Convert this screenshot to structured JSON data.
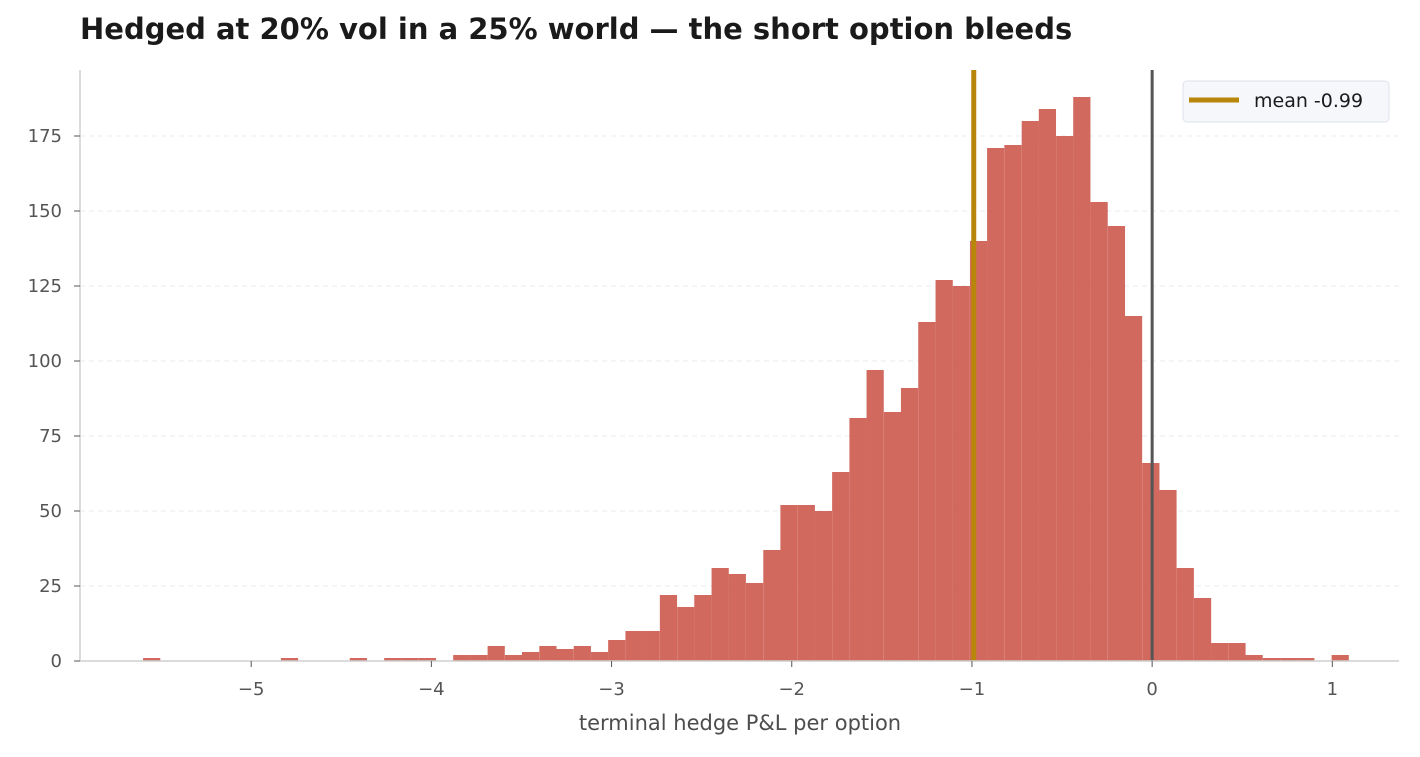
{
  "chart_data": {
    "type": "bar",
    "title": "Hedged at 20% vol in a 25% world — the short option bleeds",
    "xlabel": "terminal hedge P&L per option",
    "ylabel": "",
    "xlim": [
      -5.95,
      1.37
    ],
    "ylim": [
      0,
      197
    ],
    "xticks": [
      -5,
      -4,
      -3,
      -2,
      -1,
      0,
      1
    ],
    "xtick_labels": [
      "−5",
      "−4",
      "−3",
      "−2",
      "−1",
      "0",
      "1"
    ],
    "yticks": [
      0,
      25,
      50,
      75,
      100,
      125,
      150,
      175
    ],
    "ytick_labels": [
      "0",
      "25",
      "50",
      "75",
      "100",
      "125",
      "150",
      "175"
    ],
    "grid": "horizontal dashed",
    "bin_width": 0.0956,
    "bin_starts": [
      -5.6,
      -5.504,
      -5.409,
      -5.313,
      -5.218,
      -5.122,
      -5.026,
      -4.931,
      -4.835,
      -4.74,
      -4.644,
      -4.548,
      -4.453,
      -4.357,
      -4.262,
      -4.166,
      -4.07,
      -3.975,
      -3.879,
      -3.784,
      -3.688,
      -3.592,
      -3.497,
      -3.401,
      -3.306,
      -3.21,
      -3.114,
      -3.019,
      -2.923,
      -2.828,
      -2.732,
      -2.636,
      -2.541,
      -2.445,
      -2.35,
      -2.254,
      -2.158,
      -2.063,
      -1.967,
      -1.872,
      -1.776,
      -1.68,
      -1.585,
      -1.489,
      -1.394,
      -1.298,
      -1.202,
      -1.107,
      -1.011,
      -0.916,
      -0.82,
      -0.724,
      -0.629,
      -0.533,
      -0.438,
      -0.342,
      -0.246,
      -0.151,
      -0.055,
      0.04,
      0.136,
      0.232,
      0.327,
      0.423,
      0.518,
      0.614,
      0.71,
      0.805,
      0.901,
      0.996
    ],
    "values": [
      1,
      0,
      0,
      0,
      0,
      0,
      0,
      0,
      1,
      0,
      0,
      0,
      1,
      0,
      1,
      1,
      1,
      0,
      2,
      2,
      5,
      2,
      3,
      5,
      4,
      5,
      3,
      7,
      10,
      10,
      22,
      18,
      22,
      31,
      29,
      26,
      37,
      52,
      52,
      50,
      63,
      81,
      97,
      83,
      91,
      113,
      127,
      125,
      140,
      171,
      172,
      180,
      184,
      175,
      188,
      153,
      145,
      115,
      66,
      57,
      31,
      21,
      6,
      6,
      2,
      1,
      1,
      1,
      0,
      2
    ],
    "bar_color": "#cd5c50",
    "vlines": [
      {
        "x": -0.99,
        "color": "#b8860b",
        "label": "mean -0.99"
      },
      {
        "x": 0,
        "color": "#555555",
        "label": ""
      }
    ],
    "legend": {
      "position": "top-right",
      "entries": [
        "mean -0.99"
      ]
    }
  }
}
